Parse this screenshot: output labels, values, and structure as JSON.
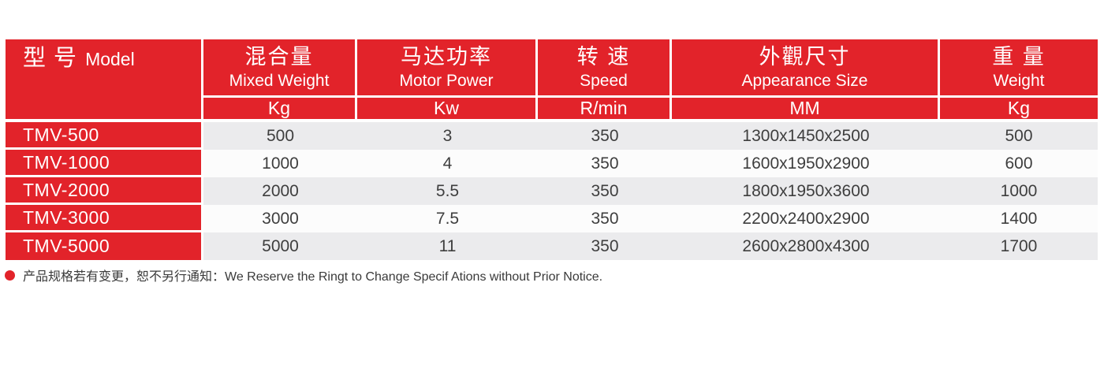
{
  "theme": {
    "accent_red": "#E2232A",
    "stripe_gray": "#EBEBED",
    "stripe_white": "#FCFCFC",
    "value_text": "#3E3E3E",
    "header_text": "#FFFFFF"
  },
  "table": {
    "model_header": {
      "zh": "型  号",
      "en": "Model"
    },
    "columns": [
      {
        "zh": "混合量",
        "en": "Mixed Weight",
        "unit": "Kg"
      },
      {
        "zh": "马达功率",
        "en": "Motor Power",
        "unit": "Kw"
      },
      {
        "zh": "转  速",
        "en": "Speed",
        "unit": "R/min"
      },
      {
        "zh": "外觀尺寸",
        "en": "Appearance Size",
        "unit": "MM"
      },
      {
        "zh": "重  量",
        "en": "Weight",
        "unit": "Kg"
      }
    ],
    "rows": [
      {
        "model": "TMV-500",
        "values": [
          "500",
          "3",
          "350",
          "1300x1450x2500",
          "500"
        ]
      },
      {
        "model": "TMV-1000",
        "values": [
          "1000",
          "4",
          "350",
          "1600x1950x2900",
          "600"
        ]
      },
      {
        "model": "TMV-2000",
        "values": [
          "2000",
          "5.5",
          "350",
          "1800x1950x3600",
          "1000"
        ]
      },
      {
        "model": "TMV-3000",
        "values": [
          "3000",
          "7.5",
          "350",
          "2200x2400x2900",
          "1400"
        ]
      },
      {
        "model": "TMV-5000",
        "values": [
          "5000",
          "11",
          "350",
          "2600x2800x4300",
          "1700"
        ]
      }
    ]
  },
  "footnote": {
    "text": "产品规格若有变更，恕不另行通知：We Reserve the Ringt to Change Specif Ations without Prior Notice."
  }
}
